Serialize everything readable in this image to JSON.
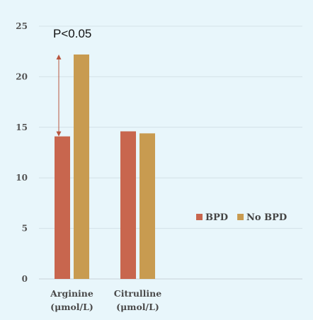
{
  "chart_data": {
    "type": "bar",
    "categories": [
      {
        "line1": "Arginine",
        "line2": "(μmol/L)"
      },
      {
        "line1": "Citrulline",
        "line2": "(μmol/L)"
      }
    ],
    "series": [
      {
        "name": "BPD",
        "color": "#c8664e",
        "values": [
          14.1,
          14.6
        ]
      },
      {
        "name": "No BPD",
        "color": "#c89b50",
        "values": [
          22.2,
          14.4
        ]
      }
    ],
    "ylim": [
      0,
      25
    ],
    "yticks": [
      0,
      5,
      10,
      15,
      20,
      25
    ],
    "grid": true,
    "legend_position": "middle-right",
    "annotation": {
      "text": "P<0.05",
      "arrow_color": "#b8553f",
      "from_value": 14.1,
      "to_value": 22.2
    }
  }
}
